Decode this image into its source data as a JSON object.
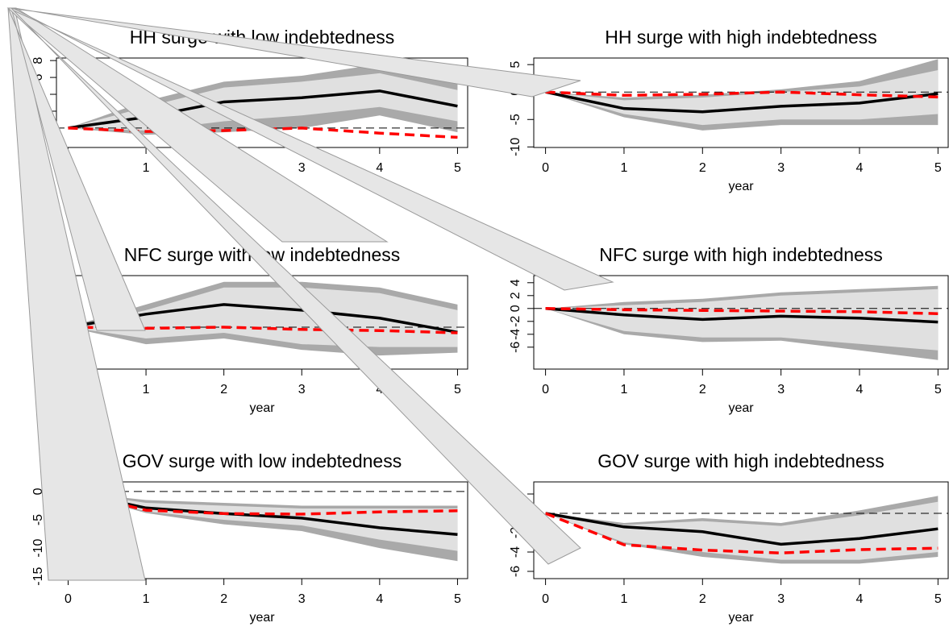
{
  "chart_data": [
    {
      "type": "line",
      "title": "HH surge with low indebtedness",
      "xlabel": "year",
      "x": [
        0,
        1,
        2,
        3,
        4,
        5
      ],
      "xlim": [
        -0.15,
        5.13
      ],
      "xticks": [
        0,
        1,
        2,
        3,
        4,
        5
      ],
      "ylim": [
        -2.3,
        8.3
      ],
      "yticks": [
        -2,
        0,
        2,
        4,
        6,
        8
      ],
      "hline": 0,
      "bands": [
        {
          "color": "#a9a9a9",
          "lower": [
            0,
            -0.8,
            -0.5,
            0,
            1.5,
            -0.5
          ],
          "upper": [
            0,
            3.2,
            5.5,
            6.2,
            7.6,
            5.5
          ]
        },
        {
          "color": "#e0e0e0",
          "lower": [
            0,
            -0.3,
            0.8,
            1.5,
            2.5,
            0.8
          ],
          "upper": [
            0,
            2.5,
            4.8,
            5.5,
            6.5,
            4.5
          ]
        }
      ],
      "series": [
        {
          "color": "#000000",
          "values": [
            0,
            1.3,
            3.1,
            3.6,
            4.4,
            2.6
          ]
        },
        {
          "color": "#ff0000",
          "dashed": true,
          "values": [
            0,
            -0.4,
            -0.3,
            0,
            -0.6,
            -1.1
          ]
        }
      ]
    },
    {
      "type": "line",
      "title": "HH surge with high indebtedness",
      "xlabel": "year",
      "x": [
        0,
        1,
        2,
        3,
        4,
        5
      ],
      "xlim": [
        -0.15,
        5.13
      ],
      "xticks": [
        0,
        1,
        2,
        3,
        4,
        5
      ],
      "ylim": [
        -10.1,
        6.2
      ],
      "yticks": [
        -10,
        -5,
        0,
        5
      ],
      "hline": 0,
      "bands": [
        {
          "color": "#a9a9a9",
          "lower": [
            0,
            -4.6,
            -7,
            -6,
            -6,
            -6
          ],
          "upper": [
            0,
            -1,
            -0.5,
            0.5,
            2,
            6
          ]
        },
        {
          "color": "#e0e0e0",
          "lower": [
            0,
            -4,
            -6,
            -5,
            -5,
            -4
          ],
          "upper": [
            0,
            -1.5,
            -1,
            0,
            1,
            4
          ]
        }
      ],
      "series": [
        {
          "color": "#000000",
          "values": [
            0,
            -3,
            -3.6,
            -2.6,
            -2,
            -0.3
          ]
        },
        {
          "color": "#ff0000",
          "dashed": true,
          "values": [
            0,
            -0.6,
            -0.4,
            0,
            -0.5,
            -0.9
          ]
        }
      ]
    },
    {
      "type": "line",
      "title": "NFC surge with low indebtedness",
      "xlabel": "year",
      "x": [
        0,
        1,
        2,
        3,
        4,
        5
      ],
      "xlim": [
        -0.15,
        5.13
      ],
      "xticks": [
        0,
        1,
        2,
        3,
        4,
        5
      ],
      "ylim": [
        -7.4,
        9.1
      ],
      "yticks": [
        -4,
        -2,
        0,
        2,
        4,
        6
      ],
      "hline": 0,
      "bands": [
        {
          "color": "#a9a9a9",
          "lower": [
            0,
            -3,
            -2,
            -4,
            -5,
            -4.5
          ],
          "upper": [
            0,
            4,
            8,
            8,
            7,
            4
          ]
        },
        {
          "color": "#e0e0e0",
          "lower": [
            0,
            -2,
            -1,
            -3,
            -3.5,
            -3.5
          ],
          "upper": [
            0,
            3,
            7,
            7,
            6,
            3
          ]
        }
      ],
      "series": [
        {
          "color": "#000000",
          "values": [
            0,
            2.3,
            4,
            3,
            1.6,
            -0.9
          ]
        },
        {
          "color": "#ff0000",
          "dashed": true,
          "values": [
            0,
            -0.2,
            0,
            -0.4,
            -0.6,
            -1
          ]
        }
      ]
    },
    {
      "type": "line",
      "title": "NFC surge with high indebtedness",
      "xlabel": "year",
      "x": [
        0,
        1,
        2,
        3,
        4,
        5
      ],
      "xlim": [
        -0.15,
        5.13
      ],
      "xticks": [
        0,
        1,
        2,
        3,
        4,
        5
      ],
      "ylim": [
        -9.4,
        5.1
      ],
      "yticks": [
        -6,
        -4,
        -2,
        0,
        2,
        4
      ],
      "hline": 0,
      "bands": [
        {
          "color": "#a9a9a9",
          "lower": [
            0,
            -4,
            -5.2,
            -5,
            -6.5,
            -8
          ],
          "upper": [
            0,
            1,
            1.5,
            2.5,
            3,
            3.5
          ]
        },
        {
          "color": "#e0e0e0",
          "lower": [
            0,
            -3.5,
            -4.5,
            -4.5,
            -5.5,
            -6.5
          ],
          "upper": [
            0,
            0.5,
            1,
            2,
            2.5,
            3
          ]
        }
      ],
      "series": [
        {
          "color": "#000000",
          "values": [
            0,
            -1,
            -1.7,
            -1.2,
            -1.5,
            -2.1
          ]
        },
        {
          "color": "#ff0000",
          "dashed": true,
          "values": [
            0,
            -0.2,
            -0.3,
            -0.4,
            -0.5,
            -0.8
          ]
        }
      ]
    },
    {
      "type": "line",
      "title": "GOV surge with low indebtedness",
      "xlabel": "year",
      "x": [
        0,
        1,
        2,
        3,
        4,
        5
      ],
      "xlim": [
        -0.15,
        5.13
      ],
      "xticks": [
        0,
        1,
        2,
        3,
        4,
        5
      ],
      "ylim": [
        -15.4,
        1.7
      ],
      "yticks": [
        -15,
        -10,
        -5,
        0
      ],
      "hline": 0,
      "bands": [
        {
          "color": "#a9a9a9",
          "lower": [
            0,
            -3.8,
            -5.8,
            -7,
            -10,
            -12.3
          ],
          "upper": [
            0,
            -1.5,
            -2,
            -2.5,
            -2.5,
            -2.5
          ]
        },
        {
          "color": "#e0e0e0",
          "lower": [
            0,
            -3.5,
            -5,
            -6,
            -8.5,
            -10.5
          ],
          "upper": [
            0,
            -2,
            -2.5,
            -3,
            -3,
            -3
          ]
        }
      ],
      "series": [
        {
          "color": "#000000",
          "values": [
            0,
            -2.9,
            -3.9,
            -4.7,
            -6.4,
            -7.6
          ]
        },
        {
          "color": "#ff0000",
          "dashed": true,
          "values": [
            0,
            -3.3,
            -3.9,
            -4,
            -3.6,
            -3.4
          ]
        }
      ]
    },
    {
      "type": "line",
      "title": "GOV surge with high indebtedness",
      "xlabel": "year",
      "x": [
        0,
        1,
        2,
        3,
        4,
        5
      ],
      "xlim": [
        -0.15,
        5.13
      ],
      "xticks": [
        0,
        1,
        2,
        3,
        4,
        5
      ],
      "ylim": [
        -6.75,
        3.25
      ],
      "yticks": [
        -6,
        -4,
        -2,
        0,
        2
      ],
      "hline": 0,
      "bands": [
        {
          "color": "#a9a9a9",
          "lower": [
            0,
            -3.2,
            -4.5,
            -5.2,
            -5.2,
            -4.5
          ],
          "upper": [
            0,
            -1,
            -0.5,
            -1,
            0.3,
            1.8
          ]
        },
        {
          "color": "#e0e0e0",
          "lower": [
            0,
            -3,
            -4,
            -4.8,
            -4.8,
            -4
          ],
          "upper": [
            0,
            -1.2,
            -0.8,
            -1.3,
            -0.2,
            1.2
          ]
        }
      ],
      "series": [
        {
          "color": "#000000",
          "values": [
            0,
            -1.4,
            -1.9,
            -3.2,
            -2.6,
            -1.6
          ]
        },
        {
          "color": "#ff0000",
          "dashed": true,
          "values": [
            0,
            -3.25,
            -3.8,
            -4.1,
            -3.75,
            -3.6
          ]
        }
      ]
    }
  ]
}
